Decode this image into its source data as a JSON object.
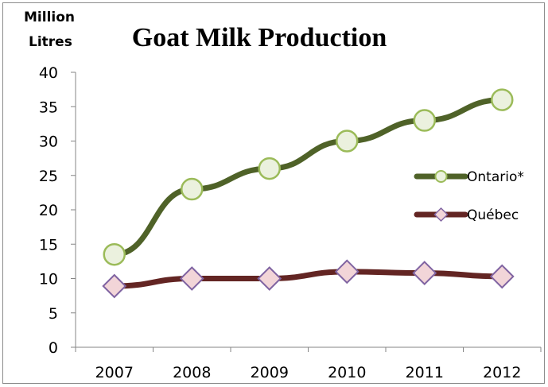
{
  "chart_data": {
    "type": "line",
    "title": "Goat Milk Production",
    "ylabel": [
      "Million",
      "Litres"
    ],
    "xlabel": "",
    "categories": [
      "2007",
      "2008",
      "2009",
      "2010",
      "2011",
      "2012"
    ],
    "ylim": [
      0,
      40
    ],
    "yticks": [
      "0",
      "5",
      "10",
      "15",
      "20",
      "25",
      "30",
      "35",
      "40"
    ],
    "grid": false,
    "legend_position": "right",
    "series": [
      {
        "name": "Ontario*",
        "values": [
          13.5,
          23,
          26,
          30,
          33,
          36
        ],
        "line_color": "#4f6228",
        "marker": "circle",
        "marker_fill": "#ebf1de",
        "marker_stroke": "#9bbb59"
      },
      {
        "name": "Québec",
        "values": [
          8.9,
          10,
          10,
          11,
          10.8,
          10.3
        ],
        "line_color": "#632523",
        "marker": "diamond",
        "marker_fill": "#f2d5d8",
        "marker_stroke": "#8064a2"
      }
    ]
  }
}
